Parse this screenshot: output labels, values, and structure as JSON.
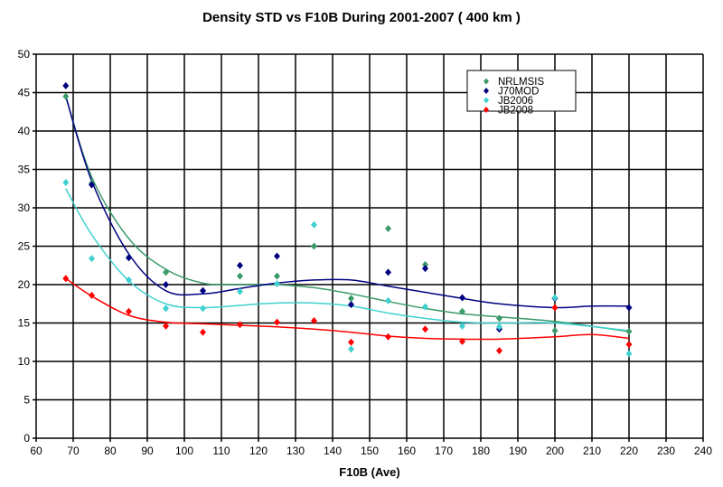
{
  "chart_data": {
    "type": "scatter",
    "title": "Density STD vs F10B During 2001-2007 ( 400 km )",
    "xlabel": "F10B (Ave)",
    "ylabel": "",
    "xlim": [
      60,
      240
    ],
    "ylim": [
      0,
      50
    ],
    "xticks": [
      60,
      70,
      80,
      90,
      100,
      110,
      120,
      130,
      140,
      150,
      160,
      170,
      180,
      190,
      200,
      210,
      220,
      230,
      240
    ],
    "yticks": [
      0,
      5,
      10,
      15,
      20,
      25,
      30,
      35,
      40,
      45,
      50
    ],
    "grid": true,
    "legend_position": "top-right",
    "x": [
      68,
      75,
      85,
      95,
      105,
      115,
      125,
      135,
      145,
      155,
      165,
      175,
      185,
      200,
      220
    ],
    "series": [
      {
        "name": "NRLMSIS",
        "color": "#3a9a6a",
        "values": [
          44.5,
          33.2,
          23.5,
          21.6,
          19.2,
          21.1,
          21.1,
          25.0,
          18.2,
          27.3,
          22.6,
          16.5,
          15.6,
          14.0,
          13.9
        ],
        "trend": {
          "x": [
            68,
            75,
            85,
            95,
            105,
            115,
            125,
            135,
            145,
            155,
            165,
            175,
            185,
            200,
            220
          ],
          "y": [
            44.5,
            34,
            26,
            22,
            20.2,
            20,
            20,
            19.6,
            18.8,
            17.8,
            16.9,
            16.2,
            15.8,
            15.2,
            13.9
          ]
        }
      },
      {
        "name": "J70MOD",
        "color": "#000080",
        "values": [
          45.9,
          33.0,
          23.5,
          20.0,
          19.2,
          22.5,
          23.7,
          null,
          17.4,
          21.6,
          22.1,
          18.3,
          14.2,
          18.2,
          17.0
        ],
        "trend": {
          "x": [
            68,
            75,
            85,
            95,
            105,
            115,
            125,
            135,
            145,
            155,
            165,
            175,
            185,
            200,
            210,
            220
          ],
          "y": [
            44.5,
            33.5,
            24,
            19.2,
            18.8,
            19.5,
            20.2,
            20.6,
            20.6,
            19.8,
            19,
            18.2,
            17.5,
            17,
            17.2,
            17.2
          ]
        }
      },
      {
        "name": "JB2006",
        "color": "#40d0d0",
        "values": [
          33.3,
          23.4,
          20.6,
          16.9,
          16.9,
          19.1,
          20.1,
          27.8,
          11.6,
          17.9,
          17.1,
          14.6,
          14.5,
          18.3,
          11.0
        ],
        "trend": {
          "x": [
            68,
            75,
            85,
            95,
            105,
            115,
            125,
            135,
            145,
            155,
            165,
            175,
            185,
            200,
            220
          ],
          "y": [
            32.5,
            26.5,
            20.5,
            17.5,
            17,
            17.3,
            17.6,
            17.6,
            17.2,
            16.3,
            15.6,
            15.1,
            15.0,
            15.0,
            14.0
          ]
        }
      },
      {
        "name": "JB2008",
        "color": "#ff0000",
        "values": [
          20.8,
          18.6,
          16.5,
          14.6,
          13.8,
          14.8,
          15.1,
          15.3,
          12.5,
          13.2,
          14.2,
          12.6,
          11.4,
          17.0,
          12.2
        ],
        "trend": {
          "x": [
            68,
            75,
            85,
            95,
            105,
            115,
            125,
            135,
            145,
            155,
            165,
            175,
            185,
            200,
            210,
            220
          ],
          "y": [
            20.8,
            18.5,
            16,
            15.1,
            14.9,
            14.7,
            14.5,
            14.2,
            13.8,
            13.3,
            13,
            12.9,
            12.9,
            13.2,
            13.5,
            13.0
          ]
        }
      }
    ]
  }
}
